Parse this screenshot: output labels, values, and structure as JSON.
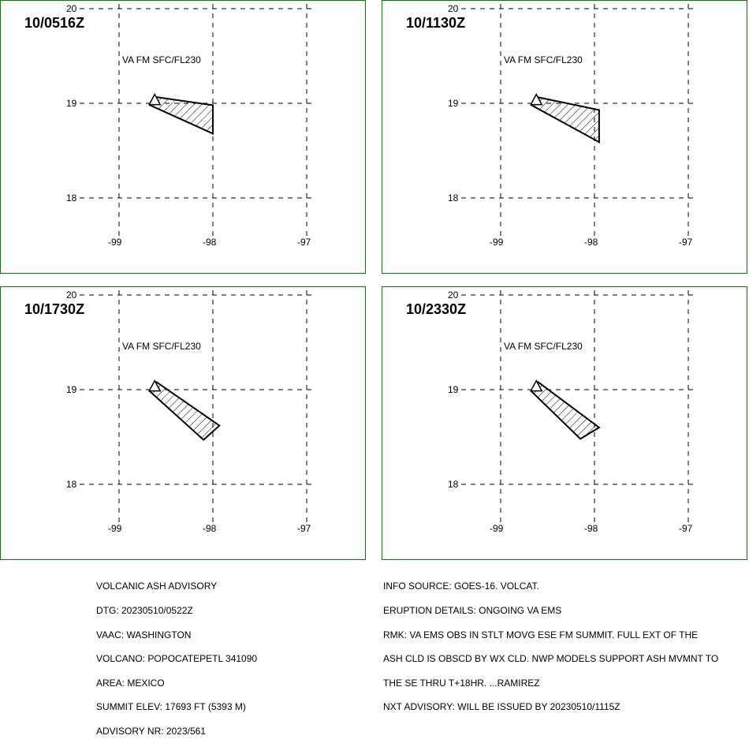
{
  "panels": [
    {
      "time": "10/0516Z",
      "level": "VA FM SFC/FL230",
      "polygon": [
        [
          -98.63,
          19.07
        ],
        [
          -98.0,
          18.98
        ],
        [
          -98.0,
          18.68
        ],
        [
          -98.67,
          18.98
        ]
      ]
    },
    {
      "time": "10/1130Z",
      "level": "VA FM SFC/FL230",
      "polygon": [
        [
          -98.63,
          19.07
        ],
        [
          -97.95,
          18.93
        ],
        [
          -97.95,
          18.59
        ],
        [
          -98.67,
          18.98
        ]
      ]
    },
    {
      "time": "10/1730Z",
      "level": "VA FM SFC/FL230",
      "polygon": [
        [
          -98.6,
          19.08
        ],
        [
          -97.93,
          18.62
        ],
        [
          -98.1,
          18.47
        ],
        [
          -98.67,
          18.98
        ]
      ]
    },
    {
      "time": "10/2330Z",
      "level": "VA FM SFC/FL230",
      "polygon": [
        [
          -98.6,
          19.08
        ],
        [
          -97.95,
          18.6
        ],
        [
          -98.15,
          18.48
        ],
        [
          -98.67,
          18.98
        ]
      ]
    }
  ],
  "axes": {
    "lat_labels": [
      "20",
      "19",
      "18"
    ],
    "lat_values": [
      20,
      19,
      18
    ],
    "lon_labels": [
      "-99",
      "-98",
      "-97"
    ],
    "lon_values": [
      -99,
      -98,
      -97
    ]
  },
  "volcano": {
    "lat": 19.02,
    "lon": -98.62,
    "symbol": "triangle"
  },
  "advisory_left": [
    "VOLCANIC ASH ADVISORY",
    "DTG: 20230510/0522Z",
    "VAAC: WASHINGTON",
    "VOLCANO: POPOCATEPETL 341090",
    "AREA: MEXICO",
    "SUMMIT ELEV: 17693 FT (5393 M)",
    "ADVISORY NR: 2023/561"
  ],
  "advisory_right": [
    "INFO SOURCE: GOES-16. VOLCAT.",
    "ERUPTION DETAILS: ONGOING VA EMS",
    "RMK: VA EMS OBS IN STLT MOVG ESE FM SUMMIT. FULL EXT OF THE",
    "ASH CLD IS OBSCD BY WX CLD. NWP MODELS SUPPORT ASH MVMNT TO",
    "THE SE THRU T+18HR. ...RAMIREZ",
    "NXT ADVISORY: WILL BE ISSUED BY 20230510/1115Z"
  ],
  "colors": {
    "border": "#008000",
    "grid": "#000000",
    "ash": "#000000"
  }
}
